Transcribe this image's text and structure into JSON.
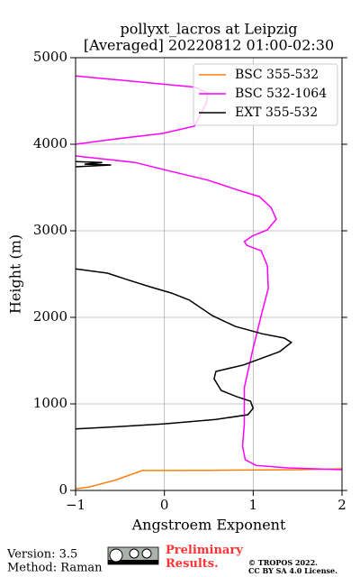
{
  "chart_data": {
    "type": "line",
    "title": [
      "pollyxt_lacros at Leipzig",
      "[Averaged] 20220812 01:00-02:30"
    ],
    "x_label": "Angstroem Exponent",
    "y_label": "Height (m)",
    "xlim": [
      -1,
      2
    ],
    "ylim": [
      0,
      5000
    ],
    "xticks": [
      {
        "value": -1,
        "label": "−1"
      },
      0,
      1,
      2
    ],
    "yticks": [
      0,
      1000,
      2000,
      3000,
      4000,
      5000
    ],
    "grid": true,
    "legend": "upper right",
    "series": [
      {
        "name": "BSC 355-532",
        "color": "#ff7f0e",
        "x": [
          -1,
          -0.85,
          -0.55,
          -0.25,
          0.5,
          1.5,
          2
        ],
        "values": [
          20,
          40,
          120,
          230,
          232,
          240,
          250
        ]
      },
      {
        "name": "BSC 532-1064",
        "color": "#ff00ff",
        "x": [
          -1,
          0.34,
          0.49,
          0.47,
          0.34,
          -0.02,
          -0.64,
          -1,
          null,
          -1,
          -0.33,
          -0.02,
          0.49,
          0.8,
          1.07,
          1.2,
          1.26,
          1.16,
          0.99,
          0.9,
          0.93,
          1.09,
          1.16,
          1.17,
          1.09,
          0.99,
          0.9,
          0.9,
          0.88,
          0.91,
          1.03,
          1.39,
          2
        ],
        "values": [
          4790,
          4660,
          4590,
          4470,
          4210,
          4125,
          4050,
          4000,
          null,
          3865,
          3790,
          3710,
          3585,
          3480,
          3395,
          3270,
          3135,
          3010,
          2940,
          2875,
          2830,
          2770,
          2595,
          2335,
          2020,
          1600,
          1190,
          770,
          510,
          355,
          290,
          260,
          240
        ]
      },
      {
        "name": "EXT 355-532",
        "color": "#000000",
        "x": [
          -1,
          -0.7,
          -0.9,
          -0.6,
          -1,
          null,
          -1,
          -0.64,
          -0.43,
          -0.17,
          0.08,
          0.28,
          0.54,
          0.8,
          1.1,
          1.35,
          1.43,
          1.3,
          0.89,
          0.58,
          0.56,
          0.64,
          0.81,
          0.97,
          1.0,
          0.94,
          0.58,
          0,
          -0.64,
          -1
        ],
        "values": [
          3800,
          3790,
          3770,
          3760,
          3740,
          null,
          2560,
          2510,
          2440,
          2355,
          2280,
          2200,
          2020,
          1895,
          1810,
          1760,
          1710,
          1605,
          1450,
          1375,
          1290,
          1155,
          1085,
          1030,
          950,
          875,
          820,
          770,
          730,
          710
        ]
      }
    ]
  },
  "footer": {
    "version": "Version: 3.5",
    "method": "Method: Raman",
    "status": "Preliminary Results.",
    "copyright": [
      "© TROPOS 2022.",
      "CC BY SA 4.0 License."
    ]
  }
}
